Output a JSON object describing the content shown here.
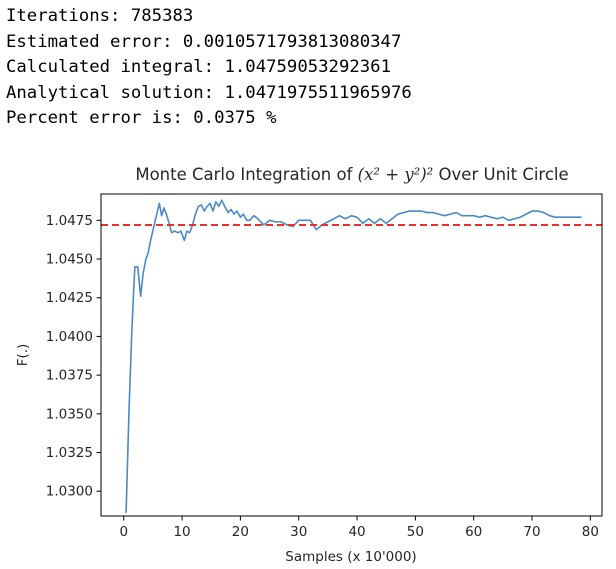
{
  "console": {
    "lines": [
      {
        "label": "Iterations:",
        "value": "785383"
      },
      {
        "label": "Estimated error:",
        "value": "0.0010571793813080347"
      },
      {
        "label": "Calculated integral:",
        "value": "1.04759053292361"
      },
      {
        "label": "Analytical solution:",
        "value": "1.0471975511965976"
      },
      {
        "label": "Percent error is:",
        "value": "0.0375 %"
      }
    ]
  },
  "chart_data": {
    "type": "line",
    "title": {
      "prefix": "Monte Carlo Integration of ",
      "math": "(x² + y²)²",
      "suffix": " Over Unit Circle"
    },
    "xlabel": "Samples (x 10'000)",
    "ylabel": "F(.)",
    "xlim": [
      -3.9,
      82
    ],
    "ylim": [
      1.0284,
      1.0492
    ],
    "xticks": [
      0,
      10,
      20,
      30,
      40,
      50,
      60,
      70,
      80
    ],
    "yticks": [
      1.03,
      1.0325,
      1.035,
      1.0375,
      1.04,
      1.0425,
      1.045,
      1.0475
    ],
    "ytick_labels": [
      "1.0300",
      "1.0325",
      "1.0350",
      "1.0375",
      "1.0400",
      "1.0425",
      "1.0450",
      "1.0475"
    ],
    "grid": false,
    "colors": {
      "line": "#4a8ac4",
      "reference": "#e8302c"
    },
    "series": [
      {
        "style": "solid",
        "x": [
          0.4,
          0.9,
          1.4,
          1.9,
          2.4,
          2.9,
          3.3,
          3.8,
          4.2,
          4.6,
          5.1,
          5.6,
          6.1,
          6.5,
          6.9,
          7.3,
          7.8,
          8.2,
          8.7,
          9.3,
          9.8,
          10.4,
          10.8,
          11.3,
          11.8,
          12.3,
          12.8,
          13.3,
          13.8,
          14.3,
          14.8,
          15.3,
          15.8,
          16.3,
          16.8,
          17.3,
          17.9,
          18.4,
          18.9,
          19.4,
          20.0,
          20.5,
          21.1,
          21.6,
          22.3,
          23.0,
          24.0,
          25.0,
          26.0,
          27.0,
          28.0,
          29.0,
          30.0,
          31.0,
          32.0,
          33.0,
          34.0,
          35.0,
          36.0,
          37.0,
          38.0,
          39.0,
          40.0,
          41.0,
          42.0,
          43.0,
          44.0,
          45.0,
          46.0,
          47.0,
          48.0,
          49.0,
          50.0,
          51.0,
          52.0,
          53.0,
          54.0,
          55.0,
          56.0,
          57.0,
          58.0,
          59.0,
          60.0,
          61.0,
          62.0,
          63.0,
          64.0,
          65.0,
          66.0,
          67.0,
          68.0,
          69.0,
          70.0,
          71.0,
          72.0,
          73.0,
          74.0,
          75.0,
          76.0,
          77.0,
          78.0,
          78.5
        ],
        "y": [
          1.0286,
          1.0352,
          1.0405,
          1.0445,
          1.0445,
          1.0426,
          1.044,
          1.045,
          1.0454,
          1.0462,
          1.047,
          1.0478,
          1.0486,
          1.0478,
          1.0483,
          1.0479,
          1.0473,
          1.0467,
          1.0468,
          1.0467,
          1.0468,
          1.0462,
          1.0468,
          1.0467,
          1.0472,
          1.0479,
          1.0484,
          1.0485,
          1.0481,
          1.0484,
          1.0486,
          1.0481,
          1.0487,
          1.0484,
          1.0488,
          1.0484,
          1.048,
          1.0482,
          1.0479,
          1.0481,
          1.0477,
          1.0479,
          1.0475,
          1.0475,
          1.0478,
          1.0476,
          1.0472,
          1.0475,
          1.0474,
          1.0474,
          1.0472,
          1.0471,
          1.0475,
          1.0475,
          1.0475,
          1.0469,
          1.0472,
          1.0474,
          1.0476,
          1.0478,
          1.0476,
          1.0478,
          1.0477,
          1.0473,
          1.0476,
          1.0473,
          1.0476,
          1.0473,
          1.0476,
          1.0479,
          1.048,
          1.0481,
          1.0481,
          1.0481,
          1.048,
          1.048,
          1.0479,
          1.0478,
          1.0479,
          1.048,
          1.0478,
          1.0478,
          1.0478,
          1.0477,
          1.0478,
          1.0477,
          1.0476,
          1.0477,
          1.0475,
          1.0476,
          1.0477,
          1.0479,
          1.0481,
          1.0481,
          1.048,
          1.0478,
          1.0477,
          1.0477,
          1.0477,
          1.0477,
          1.0477,
          1.0477
        ]
      },
      {
        "style": "dashed",
        "x": [
          -3.9,
          82
        ],
        "y": [
          1.0471975511965976,
          1.0471975511965976
        ]
      }
    ]
  }
}
